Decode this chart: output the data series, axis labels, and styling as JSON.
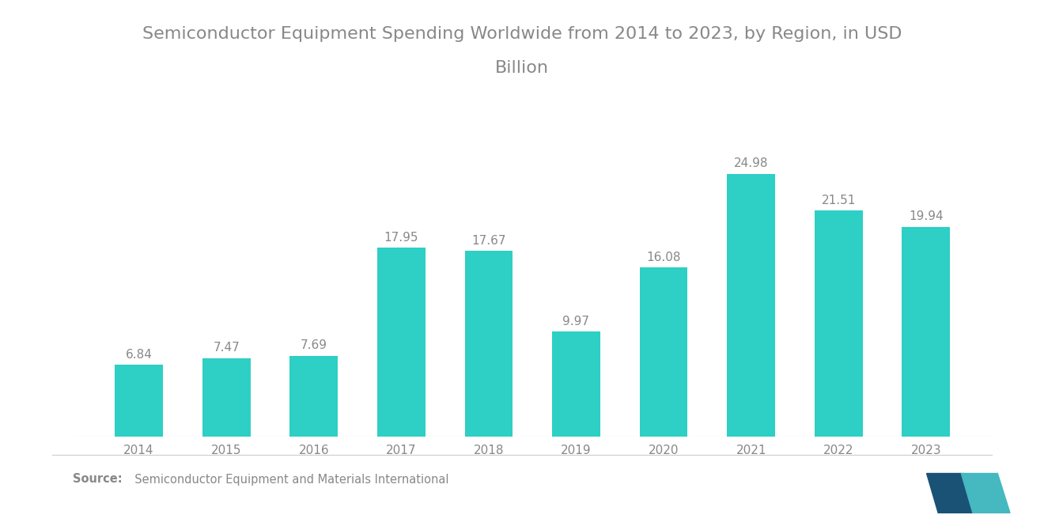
{
  "title_line1": "Semiconductor Equipment Spending Worldwide from 2014 to 2023, by Region, in USD",
  "title_line2": "Billion",
  "years": [
    "2014",
    "2015",
    "2016",
    "2017",
    "2018",
    "2019",
    "2020",
    "2021",
    "2022",
    "2023"
  ],
  "values": [
    6.84,
    7.47,
    7.69,
    17.95,
    17.67,
    9.97,
    16.08,
    24.98,
    21.51,
    19.94
  ],
  "bar_color": "#2ECFC4",
  "background_color": "#ffffff",
  "title_fontsize": 16,
  "label_fontsize": 11,
  "tick_fontsize": 11,
  "ylim": [
    0,
    30
  ],
  "title_color": "#888888",
  "tick_color": "#888888",
  "source_bold": "Source:",
  "source_rest": "  Semiconductor Equipment and Materials International",
  "logo_color1": "#1a5276",
  "logo_color2": "#45b8c0"
}
